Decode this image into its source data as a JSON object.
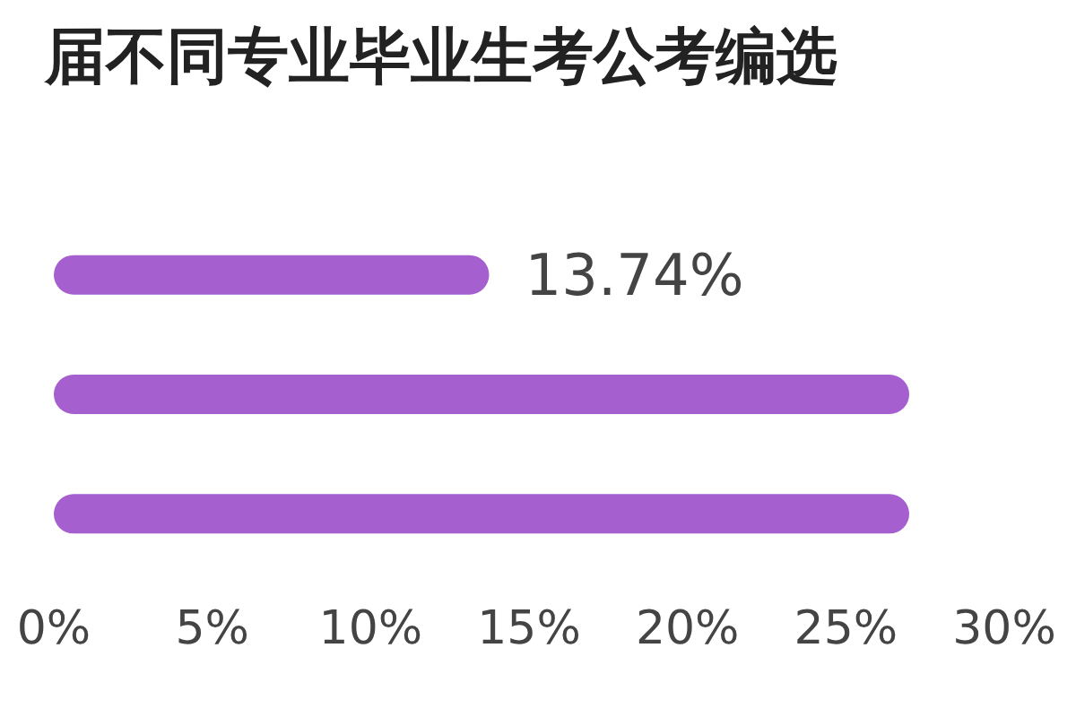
{
  "chart_data": {
    "type": "bar",
    "orientation": "horizontal",
    "title": "届不同专业毕业生考公考编选",
    "categories": [
      null,
      null,
      null
    ],
    "values": [
      13.74,
      27,
      27
    ],
    "value_labels": [
      "13.74%",
      null,
      null
    ],
    "color": "#a55fcf",
    "xlim": [
      0,
      30
    ],
    "xticks": [
      {
        "value": 0,
        "label": "0%"
      },
      {
        "value": 5,
        "label": "5%"
      },
      {
        "value": 10,
        "label": "10%"
      },
      {
        "value": 15,
        "label": "15%"
      },
      {
        "value": 20,
        "label": "20%"
      },
      {
        "value": 25,
        "label": "25%"
      },
      {
        "value": 30,
        "label": "30%"
      }
    ],
    "grid": false
  }
}
